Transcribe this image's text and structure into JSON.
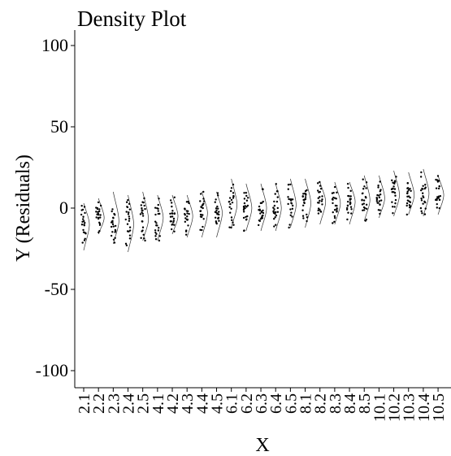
{
  "chart_data": {
    "type": "violin",
    "title": "Density Plot",
    "xlabel": "X",
    "ylabel": "Y (Residuals)",
    "ylim": [
      -110,
      110
    ],
    "yticks": [
      -100,
      -50,
      0,
      50,
      100
    ],
    "grid": false,
    "categories": [
      "2.1",
      "2.2",
      "2.3",
      "2.4",
      "2.5",
      "4.1",
      "4.2",
      "4.3",
      "4.4",
      "4.5",
      "6.1",
      "6.2",
      "6.3",
      "6.4",
      "6.5",
      "8.1",
      "8.2",
      "8.3",
      "8.4",
      "8.5",
      "10.1",
      "10.2",
      "10.3",
      "10.4",
      "10.5"
    ],
    "series": [
      {
        "min": -26,
        "max": 3,
        "center": -10
      },
      {
        "min": -16,
        "max": 6,
        "center": -6
      },
      {
        "min": -22,
        "max": 10,
        "center": -8
      },
      {
        "min": -27,
        "max": 8,
        "center": -10
      },
      {
        "min": -20,
        "max": 10,
        "center": -7
      },
      {
        "min": -20,
        "max": 8,
        "center": -6
      },
      {
        "min": -16,
        "max": 8,
        "center": -5
      },
      {
        "min": -18,
        "max": 8,
        "center": -5
      },
      {
        "min": -18,
        "max": 10,
        "center": -3
      },
      {
        "min": -18,
        "max": 10,
        "center": -3
      },
      {
        "min": -12,
        "max": 18,
        "center": 2
      },
      {
        "min": -14,
        "max": 15,
        "center": 0
      },
      {
        "min": -14,
        "max": 15,
        "center": 0
      },
      {
        "min": -14,
        "max": 15,
        "center": 0
      },
      {
        "min": -12,
        "max": 18,
        "center": 2
      },
      {
        "min": -12,
        "max": 18,
        "center": 3
      },
      {
        "min": -10,
        "max": 16,
        "center": 4
      },
      {
        "min": -10,
        "max": 16,
        "center": 3
      },
      {
        "min": -10,
        "max": 16,
        "center": 4
      },
      {
        "min": -8,
        "max": 20,
        "center": 5
      },
      {
        "min": -6,
        "max": 20,
        "center": 6
      },
      {
        "min": -5,
        "max": 23,
        "center": 8
      },
      {
        "min": -4,
        "max": 22,
        "center": 8
      },
      {
        "min": -5,
        "max": 24,
        "center": 9
      },
      {
        "min": -4,
        "max": 20,
        "center": 8
      }
    ]
  }
}
